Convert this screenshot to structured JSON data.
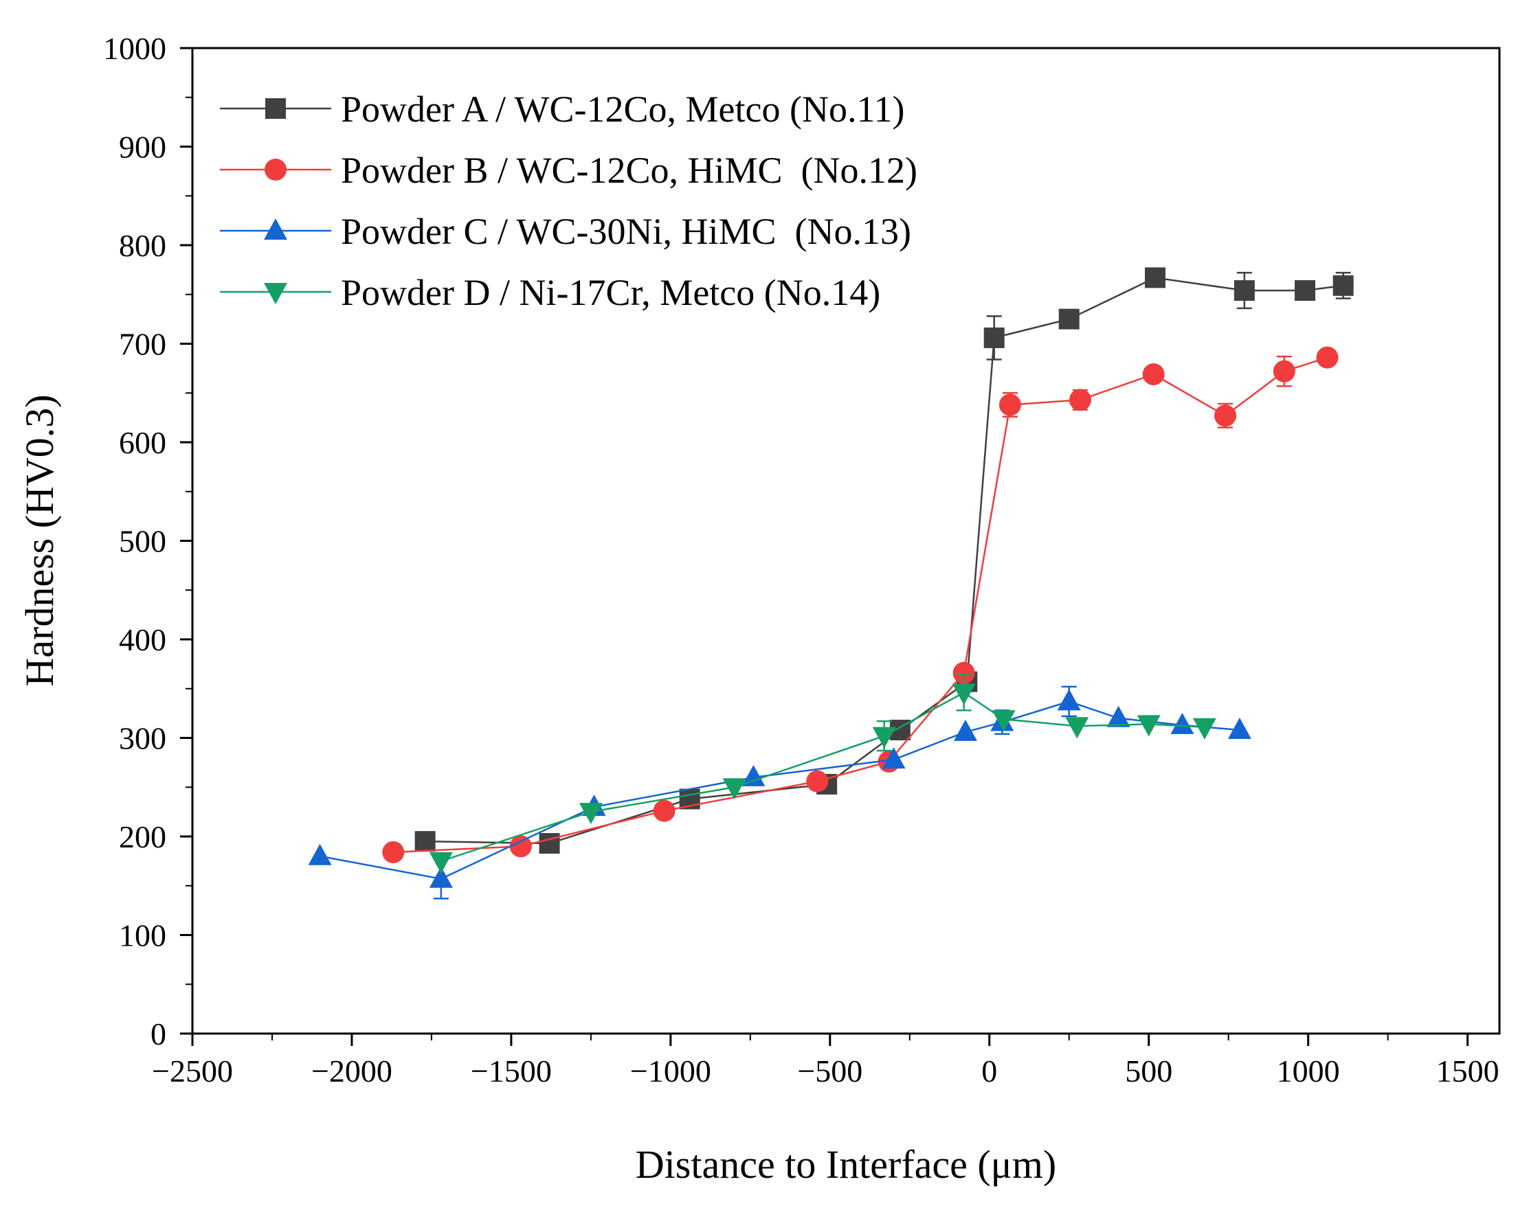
{
  "chart_data": {
    "type": "line",
    "title": "",
    "xlabel": "Distance to Interface (μm)",
    "ylabel": "Hardness (HV0.3)",
    "xlim": [
      -2500,
      1600
    ],
    "ylim": [
      0,
      1000
    ],
    "xticks": [
      -2500,
      -2000,
      -1500,
      -1000,
      -500,
      0,
      500,
      1000,
      1500
    ],
    "xtick_labels": [
      "−2500",
      "−2000",
      "−1500",
      "−1000",
      "−500",
      "0",
      "500",
      "1000",
      "1500"
    ],
    "yticks": [
      0,
      100,
      200,
      300,
      400,
      500,
      600,
      700,
      800,
      900,
      1000
    ],
    "ytick_labels": [
      "0",
      "100",
      "200",
      "300",
      "400",
      "500",
      "600",
      "700",
      "800",
      "900",
      "1000"
    ],
    "legend_position": "top-left",
    "series": [
      {
        "name": "Powder A / WC-12Co, Metco (No.11)",
        "color": "#404040",
        "marker": "square",
        "x": [
          -1770,
          -1380,
          -940,
          -510,
          -280,
          -70,
          15,
          250,
          520,
          800,
          990,
          1110
        ],
        "y": [
          195,
          193,
          238,
          253,
          308,
          357,
          706,
          725,
          767,
          754,
          754,
          759
        ],
        "err": [
          0,
          0,
          0,
          0,
          0,
          8,
          22,
          0,
          0,
          18,
          0,
          13
        ]
      },
      {
        "name": "Powder B / WC-12Co, HiMC  (No.12)",
        "color": "#f03c3c",
        "marker": "circle",
        "x": [
          -1870,
          -1470,
          -1020,
          -540,
          -315,
          -80,
          65,
          285,
          515,
          740,
          925,
          1060
        ],
        "y": [
          184,
          190,
          226,
          256,
          276,
          366,
          638,
          643,
          669,
          627,
          672,
          686
        ],
        "err": [
          0,
          0,
          0,
          0,
          0,
          0,
          12,
          10,
          0,
          12,
          15,
          0
        ]
      },
      {
        "name": "Powder C / WC-30Ni, HiMC  (No.13)",
        "color": "#1464d2",
        "marker": "triangle-up",
        "x": [
          -2100,
          -1720,
          -1240,
          -740,
          -300,
          -75,
          40,
          250,
          405,
          605,
          785
        ],
        "y": [
          180,
          157,
          230,
          260,
          278,
          306,
          316,
          337,
          320,
          313,
          308
        ],
        "err": [
          0,
          20,
          0,
          0,
          0,
          0,
          12,
          15,
          0,
          0,
          0
        ]
      },
      {
        "name": "Powder D / Ni-17Cr, Metco (No.14)",
        "color": "#14a064",
        "marker": "triangle-down",
        "x": [
          -1720,
          -1250,
          -800,
          -330,
          -80,
          45,
          275,
          500,
          675
        ],
        "y": [
          175,
          225,
          250,
          302,
          346,
          319,
          312,
          314,
          311
        ],
        "err": [
          0,
          0,
          0,
          15,
          18,
          0,
          0,
          0,
          0
        ]
      }
    ]
  }
}
